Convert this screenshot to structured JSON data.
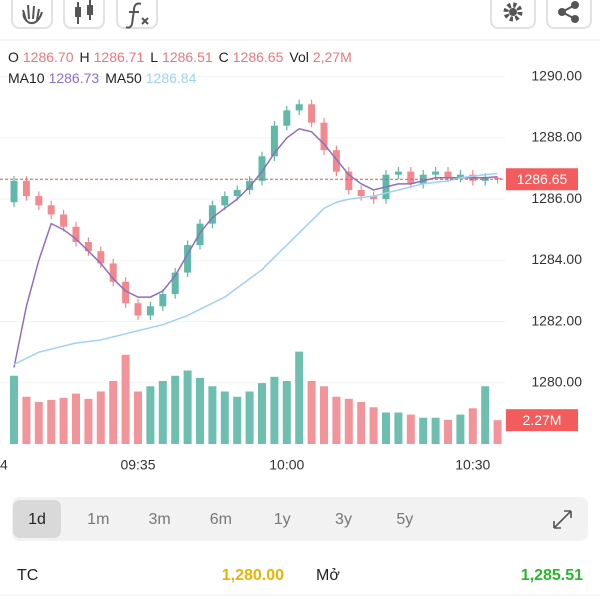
{
  "quote": [
    {
      "key": "O",
      "value": "1286.70"
    },
    {
      "key": "H",
      "value": "1286.71"
    },
    {
      "key": "L",
      "value": "1286.51"
    },
    {
      "key": "C",
      "value": "1286.65"
    },
    {
      "key": "Vol",
      "value": "2,27M"
    }
  ],
  "chart_data": {
    "type": "candlestick",
    "categories": [
      "4",
      null,
      null,
      null,
      null,
      null,
      null,
      null,
      null,
      null,
      "09:35",
      null,
      null,
      null,
      null,
      null,
      null,
      null,
      null,
      null,
      null,
      null,
      "10:00",
      null,
      null,
      null,
      null,
      null,
      null,
      null,
      null,
      null,
      null,
      null,
      null,
      null,
      null,
      "10:30",
      null,
      null
    ],
    "open": [
      1285.9,
      1286.6,
      1286.1,
      1285.8,
      1285.5,
      1285.1,
      1284.6,
      1284.3,
      1283.9,
      1283.3,
      1282.6,
      1282.2,
      1282.5,
      1282.9,
      1283.6,
      1284.5,
      1285.2,
      1285.8,
      1286.1,
      1286.3,
      1286.6,
      1287.4,
      1288.4,
      1288.9,
      1289.1,
      1288.5,
      1287.6,
      1286.9,
      1286.3,
      1286.1,
      1286.0,
      1286.8,
      1286.9,
      1286.5,
      1286.8,
      1286.9,
      1286.7,
      1286.8,
      1286.6,
      1286.7
    ],
    "high": [
      1286.75,
      1286.75,
      1286.25,
      1285.95,
      1285.65,
      1285.25,
      1284.75,
      1284.45,
      1284.05,
      1283.45,
      1282.75,
      1282.65,
      1283.05,
      1283.75,
      1284.65,
      1285.35,
      1285.95,
      1286.25,
      1286.45,
      1286.75,
      1287.55,
      1288.55,
      1289.05,
      1289.25,
      1289.25,
      1288.65,
      1287.75,
      1287.05,
      1286.45,
      1286.25,
      1286.95,
      1287.05,
      1287.05,
      1286.95,
      1287.05,
      1287.05,
      1286.95,
      1286.95,
      1286.85,
      1286.71
    ],
    "low": [
      1285.75,
      1285.95,
      1285.65,
      1285.35,
      1284.95,
      1284.45,
      1284.15,
      1283.75,
      1283.15,
      1282.45,
      1282.05,
      1282.05,
      1282.35,
      1282.75,
      1283.45,
      1284.35,
      1285.05,
      1285.65,
      1285.95,
      1286.15,
      1286.45,
      1287.25,
      1288.25,
      1288.75,
      1288.35,
      1287.45,
      1286.75,
      1286.15,
      1285.95,
      1285.85,
      1285.85,
      1286.65,
      1286.35,
      1286.35,
      1286.65,
      1286.55,
      1286.55,
      1286.45,
      1286.45,
      1286.51
    ],
    "close": [
      1286.6,
      1286.1,
      1285.8,
      1285.5,
      1285.1,
      1284.6,
      1284.3,
      1283.9,
      1283.3,
      1282.6,
      1282.2,
      1282.5,
      1282.9,
      1283.6,
      1284.5,
      1285.2,
      1285.8,
      1286.1,
      1286.3,
      1286.6,
      1287.4,
      1288.4,
      1288.9,
      1289.1,
      1288.5,
      1287.6,
      1286.9,
      1286.3,
      1286.1,
      1286.0,
      1286.8,
      1286.9,
      1286.5,
      1286.8,
      1286.9,
      1286.7,
      1286.8,
      1286.6,
      1286.7,
      1286.65
    ],
    "volume": [
      6.5,
      4.5,
      4,
      4.2,
      4.4,
      4.8,
      4.3,
      5,
      6,
      8.5,
      5,
      5.5,
      6,
      6.5,
      7,
      6.3,
      5.5,
      5,
      4.5,
      5,
      5.8,
      6.4,
      6,
      8.8,
      6,
      5.5,
      4.5,
      4.3,
      4,
      3.5,
      3,
      3,
      2.8,
      2.5,
      2.5,
      2.3,
      2.8,
      3.4,
      5.5,
      2.27
    ],
    "up_color": "#5fb8a8",
    "down_color": "#f08a8f",
    "lines": [
      {
        "name": "MA10",
        "color": "#8e6fbf",
        "value_label": "1286.73",
        "values": [
          1280.5,
          1282.5,
          1284.0,
          1285.2,
          1285.0,
          1284.7,
          1284.3,
          1283.9,
          1283.4,
          1283.0,
          1282.8,
          1282.8,
          1283.0,
          1283.5,
          1284.2,
          1284.9,
          1285.4,
          1285.7,
          1286.0,
          1286.4,
          1286.9,
          1287.5,
          1288.0,
          1288.3,
          1288.2,
          1287.8,
          1287.3,
          1286.8,
          1286.5,
          1286.3,
          1286.4,
          1286.5,
          1286.5,
          1286.6,
          1286.7,
          1286.7,
          1286.7,
          1286.7,
          1286.7,
          1286.73
        ]
      },
      {
        "name": "MA50",
        "color": "#9fd3ef",
        "value_label": "1286.84",
        "values": [
          1280.6,
          1280.8,
          1281.0,
          1281.1,
          1281.2,
          1281.3,
          1281.35,
          1281.4,
          1281.5,
          1281.6,
          1281.7,
          1281.8,
          1281.9,
          1282.05,
          1282.2,
          1282.4,
          1282.6,
          1282.8,
          1283.1,
          1283.4,
          1283.7,
          1284.1,
          1284.5,
          1284.9,
          1285.3,
          1285.7,
          1285.9,
          1286.0,
          1286.05,
          1286.1,
          1286.2,
          1286.3,
          1286.4,
          1286.5,
          1286.55,
          1286.6,
          1286.7,
          1286.75,
          1286.8,
          1286.84
        ]
      }
    ],
    "ylim": [
      1278,
      1291.2
    ],
    "yticks": [
      {
        "value": 1280,
        "label": "1280.00"
      },
      {
        "value": 1282,
        "label": "1282.00"
      },
      {
        "value": 1284,
        "label": "1284.00"
      },
      {
        "value": 1286,
        "label": "1286.00"
      },
      {
        "value": 1288,
        "label": "1288.00"
      },
      {
        "value": 1290,
        "label": "1290.00"
      }
    ],
    "vlim": [
      0,
      12
    ],
    "last_price": {
      "value": 1286.65,
      "label": "1286.65"
    },
    "last_volume": {
      "value": 2.27,
      "label": "2.27M"
    }
  },
  "timeframes": [
    "1d",
    "1m",
    "3m",
    "6m",
    "1y",
    "3y",
    "5y"
  ],
  "stats": [
    {
      "label": "TC",
      "value": "1,280.00"
    },
    {
      "label": "Mở",
      "value": "1,285.51"
    }
  ]
}
